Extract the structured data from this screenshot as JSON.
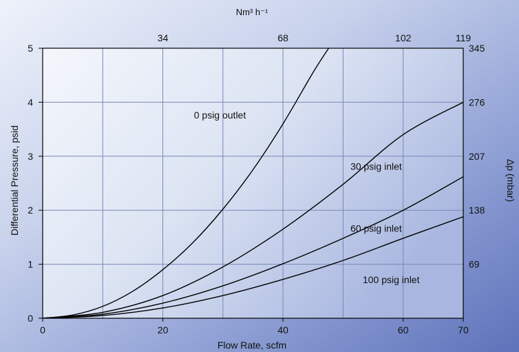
{
  "chart_data": {
    "type": "line",
    "xlabel": "Flow Rate, scfm",
    "ylabel": "Differential Pressure, psid",
    "top_axis_label": "Nm³ h⁻¹",
    "right_axis_label": "Δp (mbar)",
    "xlim": [
      0,
      70
    ],
    "ylim": [
      0,
      5
    ],
    "x_ticks": [
      0,
      20,
      40,
      60,
      70
    ],
    "x_tick_labels": [
      "0",
      "20",
      "40",
      "60",
      "70"
    ],
    "x_grid": [
      0,
      10,
      20,
      30,
      40,
      50,
      60,
      70
    ],
    "y_ticks": [
      0,
      1,
      2,
      3,
      4,
      5
    ],
    "y_tick_labels": [
      "0",
      "1",
      "2",
      "3",
      "4",
      "5"
    ],
    "top_ticks": [
      {
        "x": 20,
        "label": "34"
      },
      {
        "x": 40,
        "label": "68"
      },
      {
        "x": 60,
        "label": "102"
      },
      {
        "x": 70,
        "label": "119"
      }
    ],
    "right_ticks": [
      {
        "y": 1,
        "label": "69"
      },
      {
        "y": 2,
        "label": "138"
      },
      {
        "y": 3,
        "label": "207"
      },
      {
        "y": 4,
        "label": "276"
      },
      {
        "y": 5,
        "label": "345"
      }
    ],
    "grid": true,
    "series": [
      {
        "name": "0 psig outlet",
        "x": [
          0,
          5,
          10,
          15,
          20,
          25,
          30,
          35,
          40,
          45,
          47.6
        ],
        "y": [
          0,
          0.06,
          0.22,
          0.5,
          0.9,
          1.4,
          2.02,
          2.75,
          3.6,
          4.55,
          5.0
        ]
      },
      {
        "name": "30 psig inlet",
        "x": [
          0,
          10,
          20,
          30,
          40,
          50,
          60,
          70
        ],
        "y": [
          0,
          0.11,
          0.42,
          0.95,
          1.65,
          2.48,
          3.4,
          4.0
        ]
      },
      {
        "name": "60 psig inlet",
        "x": [
          0,
          10,
          20,
          30,
          40,
          50,
          60,
          70
        ],
        "y": [
          0,
          0.075,
          0.28,
          0.6,
          1.01,
          1.48,
          2.0,
          2.62
        ]
      },
      {
        "name": "100 psig inlet",
        "x": [
          0,
          10,
          20,
          30,
          40,
          50,
          60,
          70
        ],
        "y": [
          0,
          0.05,
          0.19,
          0.42,
          0.72,
          1.07,
          1.48,
          1.88
        ]
      }
    ],
    "annotations": [
      {
        "text": "0 psig outlet",
        "x": 29.5,
        "y": 3.7
      },
      {
        "text": "30 psig inlet",
        "x": 55.5,
        "y": 2.75
      },
      {
        "text": "60 psig inlet",
        "x": 55.5,
        "y": 1.6
      },
      {
        "text": "100 psig inlet",
        "x": 58,
        "y": 0.65
      }
    ],
    "colors": {
      "line": "#000000",
      "grid": "#7a86b8",
      "plot_bg": "#dfe6f4"
    }
  }
}
